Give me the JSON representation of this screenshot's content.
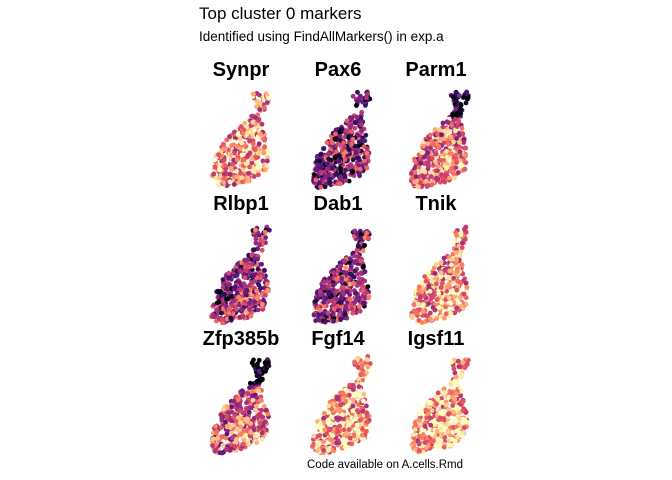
{
  "title": "Top cluster 0 markers",
  "subtitle": "Identified using FindAllMarkers() in exp.a",
  "caption": "Code available on A.cells.Rmd",
  "colors": {
    "background": "#ffffff",
    "palette_magma": [
      "#000004",
      "#1d1147",
      "#51127c",
      "#822681",
      "#b73779",
      "#e75263",
      "#fc8961",
      "#fec488",
      "#fcfdbf"
    ]
  },
  "chart_data": {
    "type": "scatter",
    "layout": "3x3 facet grid",
    "colormap": "magma",
    "axes": "none",
    "legend": "none",
    "panels": [
      {
        "gene": "Synpr",
        "expression_level": 0.72,
        "dark_region": "none"
      },
      {
        "gene": "Pax6",
        "expression_level": 0.38,
        "dark_region": "mixed"
      },
      {
        "gene": "Parm1",
        "expression_level": 0.65,
        "dark_region": "top"
      },
      {
        "gene": "Rlbp1",
        "expression_level": 0.42,
        "dark_region": "left"
      },
      {
        "gene": "Dab1",
        "expression_level": 0.45,
        "dark_region": "mixed"
      },
      {
        "gene": "Tnik",
        "expression_level": 0.74,
        "dark_region": "none"
      },
      {
        "gene": "Zfp385b",
        "expression_level": 0.6,
        "dark_region": "top"
      },
      {
        "gene": "Fgf14",
        "expression_level": 0.78,
        "dark_region": "none"
      },
      {
        "gene": "Igsf11",
        "expression_level": 0.8,
        "dark_region": "none"
      }
    ]
  }
}
